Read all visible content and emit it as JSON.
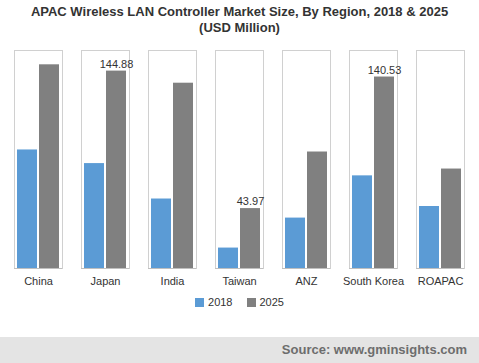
{
  "chart_data": {
    "type": "bar",
    "title": "APAC Wireless LAN Controller Market Size, By Region, 2018 & 2025\n(USD Million)",
    "categories": [
      "China",
      "Japan",
      "India",
      "Taiwan",
      "ANZ",
      "South Korea",
      "ROAPAC"
    ],
    "series": [
      {
        "name": "2018",
        "color": "#5b9bd5",
        "values": [
          87,
          77,
          51,
          15,
          37,
          68,
          45.5
        ],
        "value_labels": [
          null,
          null,
          null,
          null,
          null,
          null,
          null
        ]
      },
      {
        "name": "2025",
        "color": "#808080",
        "values": [
          149.5,
          144.88,
          136,
          43.97,
          85.5,
          140.53,
          73
        ],
        "value_labels": [
          null,
          "144.88",
          null,
          "43.97",
          null,
          "140.53",
          null
        ]
      }
    ],
    "ylim": [
      0,
      160
    ],
    "yticks": [],
    "tick_labels": "x",
    "grid": false,
    "legend": "bottom",
    "annotations": [
      "Source: www.gminsights.com"
    ]
  }
}
